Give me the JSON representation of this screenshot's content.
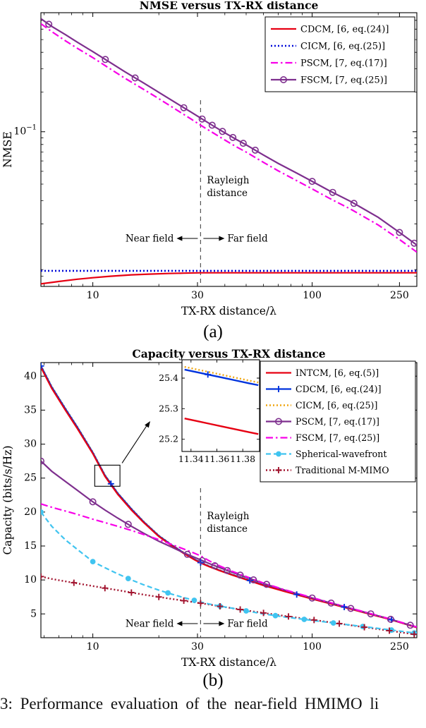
{
  "figure": {
    "caption": "3: Performance evaluation of the near-field HMIMO li",
    "panel_a_label": "(a)",
    "panel_b_label": "(b)"
  },
  "chart_data": [
    {
      "id": "a",
      "type": "line",
      "title": "NMSE versus TX-RX distance",
      "xlabel": "TX-RX distance/λ",
      "ylabel": "NMSE",
      "xscale": "log",
      "yscale": "log",
      "xlim": [
        5.8,
        300
      ],
      "ylim": [
        0.0067,
        0.8
      ],
      "xticks": [
        10,
        30,
        100,
        250
      ],
      "xminor": [
        6,
        7,
        8,
        9,
        20,
        40,
        50,
        60,
        70,
        80,
        90,
        200
      ],
      "yticks": [
        0.1
      ],
      "ytick_labels": [
        "10^−1"
      ],
      "yminor": [
        0.008,
        0.009,
        0.02,
        0.03,
        0.04,
        0.05,
        0.06,
        0.07,
        0.08,
        0.09,
        0.2,
        0.3,
        0.4,
        0.5,
        0.6,
        0.7
      ],
      "grid": false,
      "legend_position": "top-right",
      "rayleigh": {
        "x": 31,
        "line1": "Rayleigh",
        "line2": "distance",
        "near": "Near field",
        "far": "Far field"
      },
      "series": [
        {
          "id": "cdcm",
          "name": "CDCM, [6, eq.(24)]",
          "color": "#e60012",
          "dash": "solid",
          "width": 2.2,
          "marker": "none",
          "z": 1,
          "x": [
            5.8,
            7,
            8.5,
            10,
            12,
            15,
            18,
            22,
            26,
            31,
            40,
            60,
            100,
            160,
            250,
            300
          ],
          "y": [
            0.007,
            0.0073,
            0.0076,
            0.0078,
            0.008,
            0.0082,
            0.0083,
            0.0084,
            0.00845,
            0.0085,
            0.0085,
            0.0085,
            0.0085,
            0.0085,
            0.0085,
            0.0085
          ]
        },
        {
          "id": "cicm",
          "name": "CICM, [6, eq.(25)]",
          "color": "#0009d9",
          "dash": "dotted",
          "width": 2.6,
          "marker": "none",
          "z": 2,
          "x": [
            5.8,
            300
          ],
          "y": [
            0.0088,
            0.0088
          ]
        },
        {
          "id": "pscm",
          "name": "PSCM, [7, eq.(17)]",
          "color": "#f800e8",
          "dash": "dashdot",
          "width": 2.2,
          "marker": "none",
          "z": 3,
          "x": [
            5.8,
            6.5,
            7.5,
            8.5,
            10,
            12,
            14,
            17,
            20,
            24,
            28,
            31,
            35,
            40,
            45,
            50,
            60,
            70,
            85,
            100,
            120,
            150,
            200,
            250,
            300
          ],
          "y": [
            0.66,
            0.575,
            0.49,
            0.43,
            0.365,
            0.3,
            0.255,
            0.21,
            0.178,
            0.147,
            0.125,
            0.112,
            0.099,
            0.0865,
            0.077,
            0.07,
            0.0585,
            0.0505,
            0.0425,
            0.0368,
            0.0312,
            0.0258,
            0.0196,
            0.0152,
            0.0122
          ]
        },
        {
          "id": "fscm",
          "name": "FSCM, [7, eq.(25)]",
          "color": "#7E2F8E",
          "dash": "solid",
          "width": 2.2,
          "marker": "circle",
          "z": 4,
          "x": [
            5.8,
            6.5,
            7.5,
            8.5,
            10,
            12,
            14,
            17,
            20,
            24,
            28,
            31,
            35,
            40,
            45,
            50,
            60,
            70,
            85,
            100,
            120,
            150,
            200,
            250,
            300
          ],
          "y": [
            0.72,
            0.63,
            0.545,
            0.478,
            0.405,
            0.335,
            0.285,
            0.235,
            0.199,
            0.165,
            0.141,
            0.127,
            0.112,
            0.098,
            0.0875,
            0.0795,
            0.0665,
            0.0575,
            0.0485,
            0.042,
            0.0356,
            0.0295,
            0.0224,
            0.0172,
            0.0138
          ],
          "mx": [
            6.3,
            11.4,
            15.6,
            26,
            31.5,
            35,
            39,
            43.5,
            48.5,
            55,
            100,
            124,
            155,
            250,
            292
          ]
        }
      ]
    },
    {
      "id": "b",
      "type": "line",
      "title": "Capacity versus TX-RX distance",
      "xlabel": "TX-RX distance/λ",
      "ylabel": "Capacity (bits/s/Hz)",
      "xscale": "log",
      "yscale": "linear",
      "xlim": [
        5.8,
        300
      ],
      "ylim": [
        1.5,
        42
      ],
      "xticks": [
        10,
        30,
        100,
        250
      ],
      "xminor": [
        6,
        7,
        8,
        9,
        20,
        40,
        50,
        60,
        70,
        80,
        90,
        200
      ],
      "yticks": [
        5,
        10,
        15,
        20,
        25,
        30,
        35,
        40
      ],
      "grid": false,
      "legend_position": "top-right",
      "rayleigh": {
        "x": 31,
        "line1": "Rayleigh",
        "line2": "distance",
        "near": "Near field",
        "far": "Far field"
      },
      "series": [
        {
          "id": "intcm",
          "name": "INTCM, [6, eq.(5)]",
          "color": "#e60012",
          "dash": "solid",
          "width": 2.2,
          "marker": "none",
          "z": 5,
          "x": [
            5.8,
            6.5,
            7.5,
            8.5,
            10,
            11.36,
            13,
            15,
            17,
            20,
            23,
            26,
            29,
            31,
            34,
            38,
            43,
            50,
            60,
            75,
            100,
            130,
            170,
            220,
            300
          ],
          "y": [
            41.3,
            38.2,
            35.0,
            32.3,
            28.6,
            25.25,
            22.6,
            20.3,
            18.5,
            16.4,
            15.0,
            13.9,
            13.0,
            12.5,
            11.95,
            11.35,
            10.75,
            10.05,
            9.2,
            8.3,
            7.2,
            6.25,
            5.25,
            4.3,
            3.0
          ]
        },
        {
          "id": "cdcm",
          "name": "CDCM, [6, eq.(24)]",
          "color": "#0033dd",
          "dash": "solid",
          "width": 2.2,
          "marker": "plus",
          "z": 4,
          "x": [
            5.8,
            6.5,
            7.5,
            8.5,
            10,
            11.36,
            13,
            15,
            17,
            20,
            23,
            26,
            29,
            31,
            34,
            38,
            43,
            50,
            60,
            75,
            100,
            130,
            170,
            220,
            300
          ],
          "y": [
            41.5,
            38.4,
            35.2,
            32.5,
            28.75,
            25.4,
            22.75,
            20.45,
            18.6,
            16.5,
            15.1,
            13.98,
            13.07,
            12.56,
            12.0,
            11.4,
            10.8,
            10.1,
            9.25,
            8.34,
            7.24,
            6.29,
            5.29,
            4.33,
            3.03
          ],
          "mx": [
            5.8,
            12.1,
            31,
            52,
            85,
            140,
            230
          ]
        },
        {
          "id": "cicm",
          "name": "CICM, [6, eq.(25)]",
          "color": "#efa510",
          "dash": "dotted",
          "width": 2.6,
          "marker": "none",
          "z": 3,
          "x": [
            5.8,
            6.5,
            7.5,
            8.5,
            10,
            11.36,
            13,
            15,
            17,
            20,
            23,
            26,
            29,
            31,
            34,
            38,
            43,
            50,
            60,
            75,
            100,
            130,
            170,
            220,
            300
          ],
          "y": [
            41.55,
            38.45,
            35.25,
            32.55,
            28.8,
            25.44,
            22.79,
            20.49,
            18.64,
            16.54,
            15.14,
            14.02,
            13.1,
            12.6,
            12.03,
            11.43,
            10.83,
            10.13,
            9.28,
            8.37,
            7.27,
            6.32,
            5.32,
            4.36,
            3.06
          ]
        },
        {
          "id": "pscm",
          "name": "PSCM, [7, eq.(17)]",
          "color": "#7E2F8E",
          "dash": "solid",
          "width": 2.2,
          "marker": "circle",
          "z": 6,
          "x": [
            5.8,
            6.5,
            7.5,
            8.5,
            10,
            11.36,
            13,
            15,
            17,
            20,
            23,
            26,
            29,
            31,
            34,
            38,
            43,
            50,
            60,
            75,
            100,
            130,
            170,
            220,
            300
          ],
          "y": [
            27.5,
            26.0,
            24.5,
            23.2,
            21.5,
            20.3,
            19.1,
            17.9,
            16.9,
            15.7,
            14.8,
            14.0,
            13.35,
            12.95,
            12.4,
            11.8,
            11.15,
            10.4,
            9.5,
            8.5,
            7.35,
            6.36,
            5.33,
            4.36,
            3.05
          ],
          "mx": [
            5.8,
            10,
            14.5,
            27,
            31.5,
            36,
            41,
            47,
            54,
            62,
            100,
            122,
            150,
            185,
            228,
            280
          ]
        },
        {
          "id": "fscm",
          "name": "FSCM, [7, eq.(25)]",
          "color": "#f800e8",
          "dash": "dashdot",
          "width": 2.2,
          "marker": "none",
          "z": 7,
          "x": [
            5.8,
            6.5,
            7.5,
            8.5,
            10,
            11.36,
            13,
            15,
            17,
            20,
            23,
            26,
            29,
            31,
            34,
            38,
            43,
            50,
            60,
            75,
            100,
            130,
            170,
            220,
            300
          ],
          "y": [
            21.2,
            20.7,
            20.15,
            19.65,
            18.95,
            18.45,
            17.9,
            17.3,
            16.7,
            15.95,
            15.2,
            14.55,
            13.95,
            13.55,
            12.8,
            12.05,
            11.3,
            10.5,
            9.55,
            8.55,
            7.4,
            6.4,
            5.36,
            4.38,
            3.08
          ]
        },
        {
          "id": "spherical",
          "name": "Spherical-wavefront",
          "color": "#40c4f0",
          "dash": "dashed",
          "width": 2.2,
          "marker": "dot",
          "z": 2,
          "x": [
            5.8,
            6.5,
            7.5,
            8.5,
            10,
            11.36,
            13,
            15,
            17,
            20,
            23,
            26,
            29,
            31,
            34,
            38,
            43,
            50,
            60,
            75,
            100,
            130,
            170,
            220,
            300
          ],
          "y": [
            20.0,
            17.9,
            15.9,
            14.5,
            12.7,
            11.8,
            10.9,
            10.0,
            9.3,
            8.5,
            7.9,
            7.4,
            7.0,
            6.75,
            6.45,
            6.15,
            5.85,
            5.45,
            5.0,
            4.55,
            4.05,
            3.6,
            3.15,
            2.7,
            2.15
          ],
          "mx": [
            5.8,
            10,
            14.5,
            22,
            29,
            38,
            50,
            68,
            92,
            125,
            170,
            230,
            292
          ]
        },
        {
          "id": "mmimo",
          "name": "Traditional M-MIMO",
          "color": "#A2142F",
          "dash": "dotted",
          "width": 2.4,
          "marker": "plus",
          "z": 1,
          "x": [
            5.8,
            6.5,
            7.5,
            8.5,
            10,
            11.36,
            13,
            15,
            17,
            20,
            23,
            26,
            29,
            31,
            34,
            38,
            43,
            50,
            60,
            75,
            100,
            130,
            170,
            220,
            300
          ],
          "y": [
            10.5,
            10.15,
            9.8,
            9.5,
            9.1,
            8.8,
            8.5,
            8.15,
            7.85,
            7.5,
            7.2,
            6.95,
            6.72,
            6.58,
            6.38,
            6.12,
            5.85,
            5.52,
            5.15,
            4.7,
            4.15,
            3.62,
            3.08,
            2.58,
            1.95
          ],
          "mx": [
            5.8,
            8.2,
            11.36,
            15,
            20,
            26,
            31,
            38,
            47,
            60,
            78,
            102,
            133,
            173,
            225,
            292
          ]
        }
      ],
      "inset": {
        "xlim": [
          11.333,
          11.393
        ],
        "ylim": [
          25.16,
          25.46
        ],
        "xticks": [
          11.34,
          11.36,
          11.38
        ],
        "yticks": [
          25.2,
          25.3,
          25.4
        ],
        "zoom_rect": {
          "x0": 10.2,
          "x1": 13.3,
          "y0": 23.8,
          "y1": 26.9
        },
        "series": [
          {
            "id": "inset-cicm",
            "name": "CICM",
            "color": "#efa510",
            "dash": "dotted",
            "width": 2.4,
            "marker": "none",
            "z": 1,
            "x": [
              11.335,
              11.345,
              11.355,
              11.365,
              11.375,
              11.385,
              11.392
            ],
            "y": [
              25.437,
              25.428,
              25.419,
              25.41,
              25.401,
              25.392,
              25.386
            ]
          },
          {
            "id": "inset-cdcm",
            "name": "CDCM",
            "color": "#0033dd",
            "dash": "solid",
            "width": 2.4,
            "marker": "plus",
            "z": 2,
            "x": [
              11.335,
              11.345,
              11.355,
              11.365,
              11.375,
              11.385,
              11.392
            ],
            "y": [
              25.428,
              25.419,
              25.41,
              25.401,
              25.392,
              25.383,
              25.377
            ],
            "mx": [
              11.353
            ]
          },
          {
            "id": "inset-intcm",
            "name": "INTCM",
            "color": "#e60012",
            "dash": "solid",
            "width": 2.4,
            "marker": "none",
            "z": 3,
            "x": [
              11.335,
              11.345,
              11.355,
              11.365,
              11.375,
              11.385,
              11.392
            ],
            "y": [
              25.268,
              25.259,
              25.25,
              25.241,
              25.232,
              25.223,
              25.217
            ]
          }
        ]
      }
    }
  ]
}
